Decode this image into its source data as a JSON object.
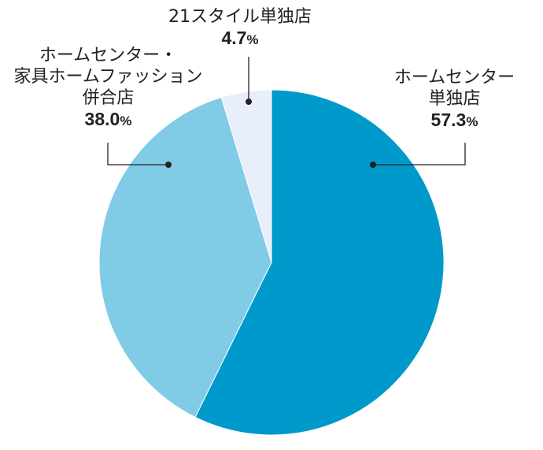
{
  "chart_data": {
    "type": "pie",
    "title": "",
    "start_angle_deg": 0,
    "direction": "clockwise",
    "slices": [
      {
        "label_lines": [
          "ホームセンター",
          "単独店"
        ],
        "value": 57.3,
        "value_text": "57.3",
        "unit": "%",
        "color": "#0099cc"
      },
      {
        "label_lines": [
          "ホームセンター・",
          "家具ホームファッション",
          "併合店"
        ],
        "value": 38.0,
        "value_text": "38.0",
        "unit": "%",
        "color": "#80cbe6"
      },
      {
        "label_lines": [
          "21スタイル単独店"
        ],
        "value": 4.7,
        "value_text": "4.7",
        "unit": "%",
        "color": "#e8effa"
      }
    ],
    "legend": "none",
    "grid": false
  }
}
